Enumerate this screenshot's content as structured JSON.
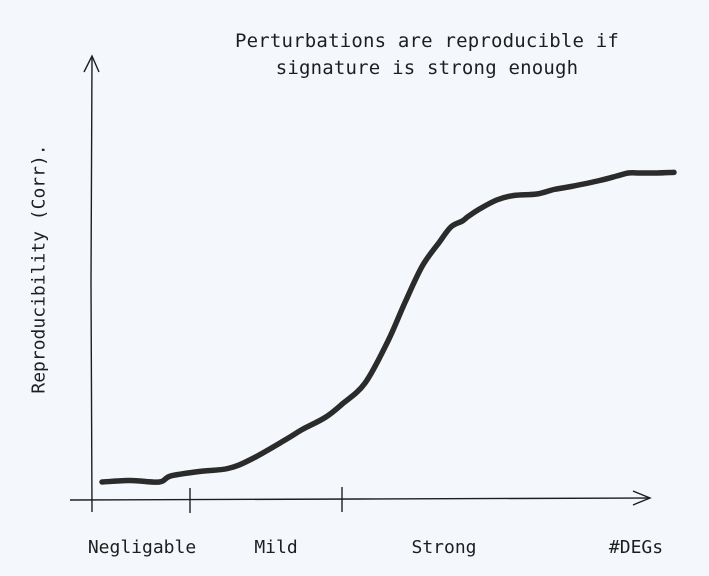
{
  "chart_data": {
    "type": "line",
    "title": "Perturbations are reproducible if\nsignature is strong enough",
    "xlabel": "#DEGs",
    "ylabel": "Reproducibility (Corr).",
    "x_categories": [
      "Negligable",
      "Mild",
      "Strong"
    ],
    "xlim": [
      0,
      100
    ],
    "ylim": [
      0,
      1
    ],
    "grid": false,
    "series": [
      {
        "x": [
          0,
          5,
          10,
          12,
          17,
          22,
          26,
          32,
          35,
          39,
          42,
          46,
          50,
          53,
          56,
          59,
          61,
          63,
          64,
          66,
          69,
          72,
          76,
          79,
          82,
          87,
          90,
          92,
          94,
          97,
          100
        ],
        "y": [
          0.0,
          0.005,
          0.0,
          0.02,
          0.035,
          0.045,
          0.075,
          0.14,
          0.175,
          0.215,
          0.26,
          0.33,
          0.47,
          0.6,
          0.72,
          0.8,
          0.85,
          0.87,
          0.885,
          0.91,
          0.94,
          0.955,
          0.96,
          0.975,
          0.985,
          1.005,
          1.02,
          1.03,
          1.03,
          1.03,
          1.032
        ]
      }
    ]
  }
}
